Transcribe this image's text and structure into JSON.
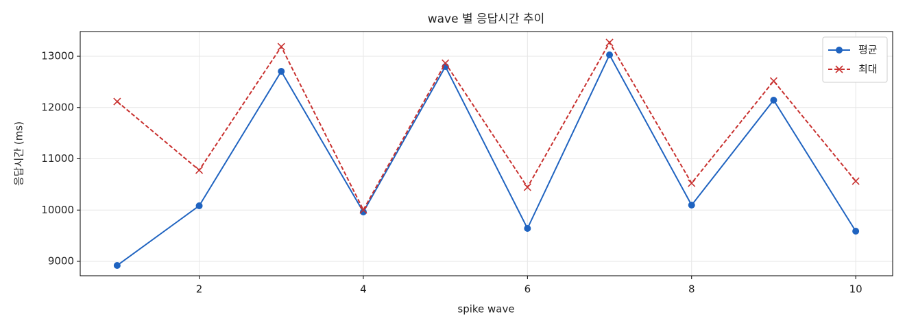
{
  "chart_data": {
    "type": "line",
    "title": "wave 별 응답시간 추이",
    "xlabel": "spike wave",
    "ylabel": "응답시간 (ms)",
    "x": [
      1,
      2,
      3,
      4,
      5,
      6,
      7,
      8,
      9,
      10
    ],
    "series": [
      {
        "name": "평균",
        "color": "#1f63c0",
        "marker": "circle",
        "linestyle": "solid",
        "values": [
          8920,
          10084,
          12706,
          9963,
          12799,
          9642,
          13027,
          10097,
          12144,
          9589
        ]
      },
      {
        "name": "최대",
        "color": "#c8302e",
        "marker": "x",
        "linestyle": "dashed",
        "values": [
          12117,
          10779,
          13187,
          10003,
          12866,
          10445,
          13268,
          10525,
          12518,
          10565
        ]
      }
    ],
    "xlim": [
      0.55,
      10.45
    ],
    "ylim": [
      8719,
      13482
    ],
    "xticks": [
      2,
      4,
      6,
      8,
      10
    ],
    "yticks": [
      9000,
      10000,
      11000,
      12000,
      13000
    ],
    "grid": true,
    "legend": "upper right"
  }
}
